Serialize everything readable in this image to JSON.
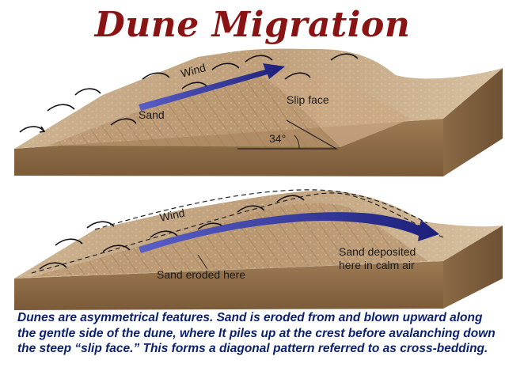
{
  "title": "Dune Migration",
  "top_panel": {
    "wind_label": "Wind",
    "sand_label": "Sand",
    "slip_face_label": "Slip face",
    "angle_label": "34°"
  },
  "bottom_panel": {
    "wind_label": "Wind",
    "eroded_label": "Sand eroded here",
    "deposited_label_line1": "Sand deposited",
    "deposited_label_line2": "here in calm air"
  },
  "caption": "Dunes are asymmetrical features.  Sand is eroded from and blown upward along the gentle side of the dune, where It piles up at the crest before avalanching down the steep “slip face.”  This forms a diagonal pattern referred to as cross-bedding.",
  "colors": {
    "title": "#8a1414",
    "caption": "#0a1f6e",
    "wind_arrow": "#1c1f7a",
    "sand_top": "#c9ad8a",
    "block_side": "#8c6a45"
  }
}
